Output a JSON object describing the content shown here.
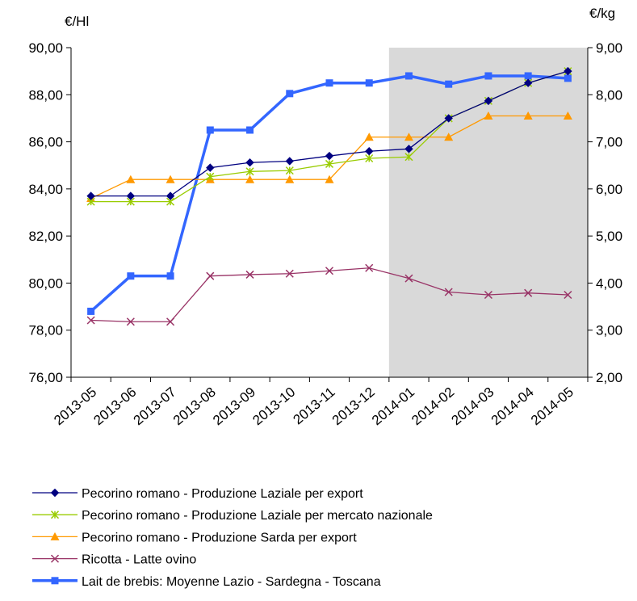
{
  "chart_data": {
    "type": "line",
    "left_axis_unit": "€/Hl",
    "right_axis_unit": "€/kg",
    "categories": [
      "2013-05",
      "2013-06",
      "2013-07",
      "2013-08",
      "2013-09",
      "2013-10",
      "2013-11",
      "2013-12",
      "2014-01",
      "2014-02",
      "2014-03",
      "2014-04",
      "2014-05"
    ],
    "left_axis": {
      "min": 76,
      "max": 90,
      "step": 2,
      "tick_labels": [
        "76,00",
        "78,00",
        "80,00",
        "82,00",
        "84,00",
        "86,00",
        "88,00",
        "90,00"
      ]
    },
    "right_axis": {
      "min": 2,
      "max": 9,
      "step": 1,
      "tick_labels": [
        "2,00",
        "3,00",
        "4,00",
        "5,00",
        "6,00",
        "7,00",
        "8,00",
        "9,00"
      ]
    },
    "shaded_region": {
      "from": "2014-01",
      "to": "2014-05",
      "color": "#d9d9d9"
    },
    "grid": false,
    "legend_position": "bottom",
    "series": [
      {
        "name": "Pecorino romano - Produzione Laziale per export",
        "axis": "right",
        "color": "#000080",
        "marker": "diamond",
        "values": [
          5.85,
          5.85,
          5.85,
          6.45,
          6.56,
          6.59,
          6.7,
          6.8,
          6.85,
          7.5,
          7.87,
          8.25,
          8.5
        ]
      },
      {
        "name": "Pecorino romano - Produzione Laziale per mercato nazionale",
        "axis": "right",
        "color": "#99cc00",
        "marker": "star",
        "values": [
          5.73,
          5.73,
          5.73,
          6.26,
          6.37,
          6.39,
          6.53,
          6.65,
          6.68,
          7.5,
          7.87,
          8.25,
          8.5
        ]
      },
      {
        "name": "Pecorino romano - Produzione Sarda per export",
        "axis": "right",
        "color": "#ff9900",
        "marker": "triangle",
        "values": [
          5.8,
          6.2,
          6.2,
          6.2,
          6.2,
          6.2,
          6.2,
          7.1,
          7.1,
          7.1,
          7.55,
          7.55,
          7.55
        ]
      },
      {
        "name": "Ricotta - Latte ovino",
        "axis": "right",
        "color": "#993366",
        "marker": "x",
        "values": [
          3.21,
          3.18,
          3.18,
          4.15,
          4.18,
          4.2,
          4.26,
          4.32,
          4.1,
          3.81,
          3.75,
          3.79,
          3.75
        ]
      },
      {
        "name": "Lait de brebis: Moyenne Lazio - Sardegna - Toscana",
        "axis": "left",
        "color": "#3366ff",
        "marker": "square",
        "values": [
          78.8,
          80.3,
          80.3,
          86.5,
          86.5,
          88.05,
          88.5,
          88.5,
          88.8,
          88.45,
          88.8,
          88.8,
          88.7
        ]
      }
    ]
  }
}
